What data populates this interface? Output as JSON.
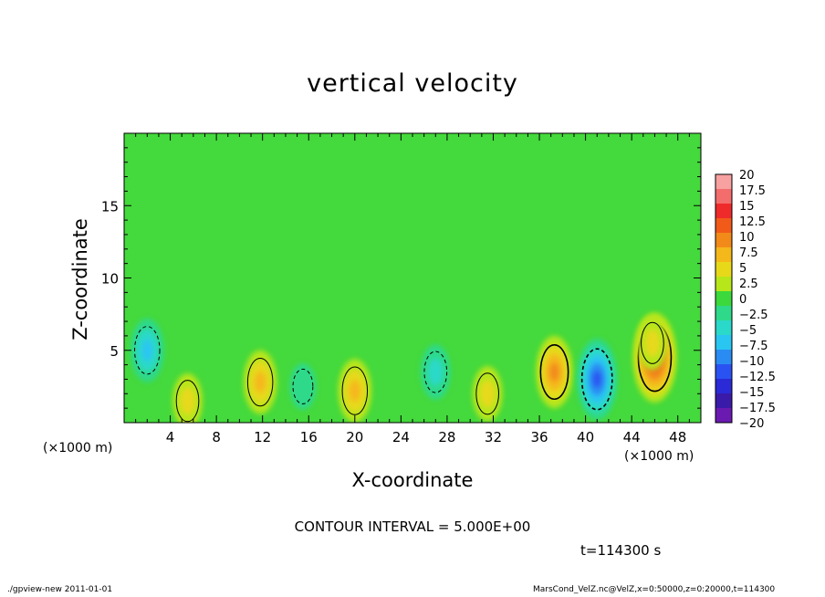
{
  "chart_data": {
    "type": "heatmap",
    "title": "vertical velocity",
    "xlabel": "X-coordinate",
    "ylabel": "Z-coordinate",
    "x_unit": "(×1000 m)",
    "xlim": [
      0,
      50
    ],
    "ylim": [
      0,
      20
    ],
    "x_ticks": [
      4,
      8,
      12,
      16,
      20,
      24,
      28,
      32,
      36,
      40,
      44,
      48
    ],
    "y_ticks": [
      5,
      10,
      15
    ],
    "colorbar": {
      "levels": [
        "20",
        "17.5",
        "15",
        "12.5",
        "10",
        "7.5",
        "5",
        "2.5",
        "0",
        "−2.5",
        "−5",
        "−7.5",
        "−10",
        "−12.5",
        "−15",
        "−17.5",
        "−20"
      ],
      "colors": [
        "#f7a1a1",
        "#f36d6d",
        "#ef2a2a",
        "#f25a1a",
        "#f28a1a",
        "#f5b81a",
        "#e7d91a",
        "#b7e61a",
        "#3bd93b",
        "#2fd98a",
        "#2ad9c9",
        "#2ac6f2",
        "#2a8cf2",
        "#2a52f2",
        "#2a2ad6",
        "#3a1aa8",
        "#6a1ab0"
      ]
    },
    "contour_interval": "CONTOUR INTERVAL = 5.000E+00",
    "time_label": "t=114300 s",
    "features": [
      {
        "x": 5.5,
        "z": 1.5,
        "value": 5
      },
      {
        "x": 2,
        "z": 5,
        "value": -7.5
      },
      {
        "x": 11.8,
        "z": 2.8,
        "value": 7.5
      },
      {
        "x": 15.5,
        "z": 2.5,
        "value": -2.5
      },
      {
        "x": 20,
        "z": 2.2,
        "value": 7.5
      },
      {
        "x": 27,
        "z": 3.5,
        "value": -5
      },
      {
        "x": 31.5,
        "z": 2.0,
        "value": 5
      },
      {
        "x": 37.3,
        "z": 3.5,
        "value": 10
      },
      {
        "x": 41,
        "z": 3.0,
        "value": -12.5
      },
      {
        "x": 46,
        "z": 4.5,
        "value": 15
      },
      {
        "x": 45.8,
        "z": 5.5,
        "value": 5
      }
    ]
  },
  "footer": {
    "left": "./gpview-new   2011-01-01",
    "right": "MarsCond_VelZ.nc@VelZ,x=0:50000,z=0:20000,t=114300"
  }
}
